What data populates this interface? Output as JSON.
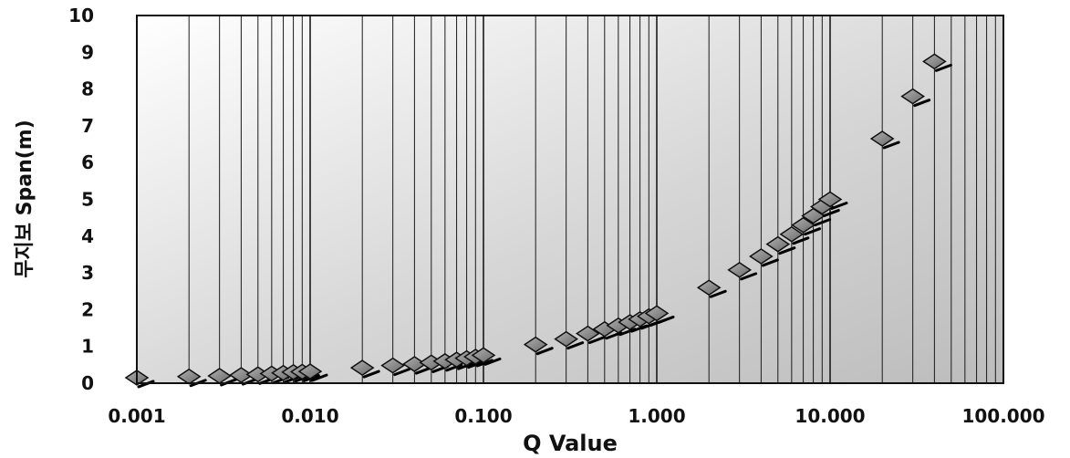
{
  "chart_data": {
    "type": "scatter",
    "xlabel": "Q Value",
    "ylabel": "무지보 Span(m)",
    "x_scale": "log",
    "xlim": [
      0.001,
      100
    ],
    "ylim": [
      0,
      10
    ],
    "x_tick_labels": [
      "0.001",
      "0.010",
      "0.100",
      "1.000",
      "10.000",
      "100.000"
    ],
    "y_tick_labels": [
      "0",
      "1",
      "2",
      "3",
      "4",
      "5",
      "6",
      "7",
      "8",
      "9",
      "10"
    ],
    "grid": true,
    "marker": "diamond",
    "series": [
      {
        "points": [
          [
            0.001,
            0.15
          ],
          [
            0.002,
            0.18
          ],
          [
            0.003,
            0.2
          ],
          [
            0.004,
            0.22
          ],
          [
            0.005,
            0.24
          ],
          [
            0.006,
            0.26
          ],
          [
            0.007,
            0.28
          ],
          [
            0.008,
            0.3
          ],
          [
            0.009,
            0.31
          ],
          [
            0.01,
            0.32
          ],
          [
            0.02,
            0.42
          ],
          [
            0.03,
            0.48
          ],
          [
            0.04,
            0.52
          ],
          [
            0.05,
            0.56
          ],
          [
            0.06,
            0.6
          ],
          [
            0.07,
            0.64
          ],
          [
            0.08,
            0.68
          ],
          [
            0.09,
            0.72
          ],
          [
            0.1,
            0.76
          ],
          [
            0.2,
            1.05
          ],
          [
            0.3,
            1.2
          ],
          [
            0.4,
            1.35
          ],
          [
            0.5,
            1.47
          ],
          [
            0.6,
            1.57
          ],
          [
            0.7,
            1.66
          ],
          [
            0.8,
            1.74
          ],
          [
            0.9,
            1.82
          ],
          [
            1.0,
            1.9
          ],
          [
            2.0,
            2.6
          ],
          [
            3.0,
            3.08
          ],
          [
            4.0,
            3.45
          ],
          [
            5.0,
            3.78
          ],
          [
            6.0,
            4.05
          ],
          [
            7.0,
            4.3
          ],
          [
            8.0,
            4.55
          ],
          [
            9.0,
            4.8
          ],
          [
            10.0,
            5.0
          ],
          [
            20.0,
            6.65
          ],
          [
            30.0,
            7.8
          ],
          [
            40.0,
            8.75
          ]
        ]
      }
    ]
  }
}
